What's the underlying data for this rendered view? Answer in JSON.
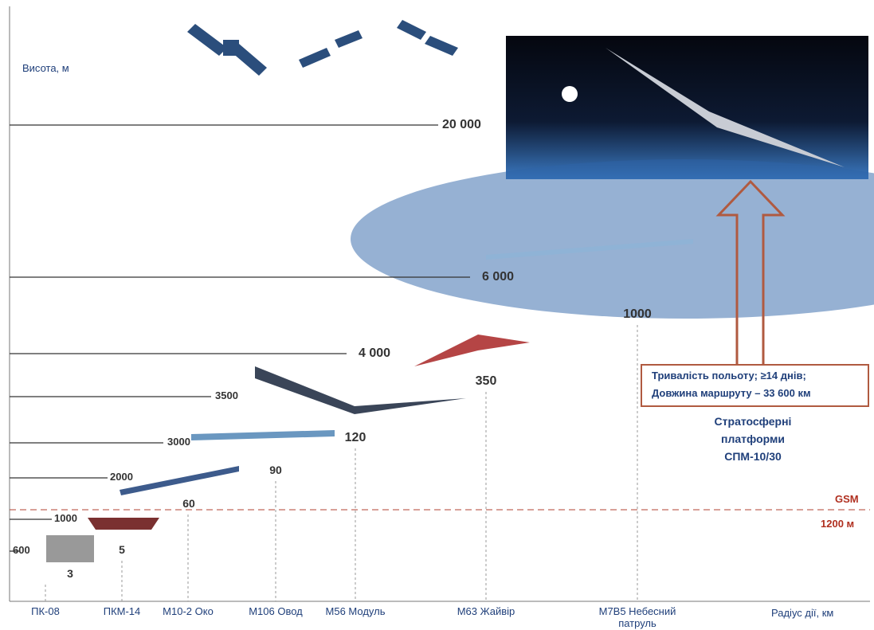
{
  "y_axis_label": "Висота, м",
  "x_axis_label": "Радіус дії, км",
  "altitudes": [
    "20 000",
    "6 000",
    "4 000",
    "3500",
    "3000",
    "2000",
    "1000",
    "600"
  ],
  "drones": [
    {
      "name": "ПК-08",
      "radius": "3"
    },
    {
      "name": "ПКМ-14",
      "radius": "5"
    },
    {
      "name": "М10-2 Око",
      "radius": "60"
    },
    {
      "name": "М106 Овод",
      "radius": "90"
    },
    {
      "name": "М56 Модуль",
      "radius": "120"
    },
    {
      "name": "М63 Жайвір",
      "radius": "350"
    },
    {
      "name": "М7В5 Небесний патруль",
      "radius": "1000"
    }
  ],
  "stratosphere": {
    "note_lines": [
      "Тривалість польоту; ≥14 днів;",
      "Довжина маршруту – 33 600 км"
    ],
    "caption": "Стратосферні платформи СПМ-10/30"
  },
  "gsm": {
    "label": "GSM",
    "altitude": "1200 м"
  }
}
